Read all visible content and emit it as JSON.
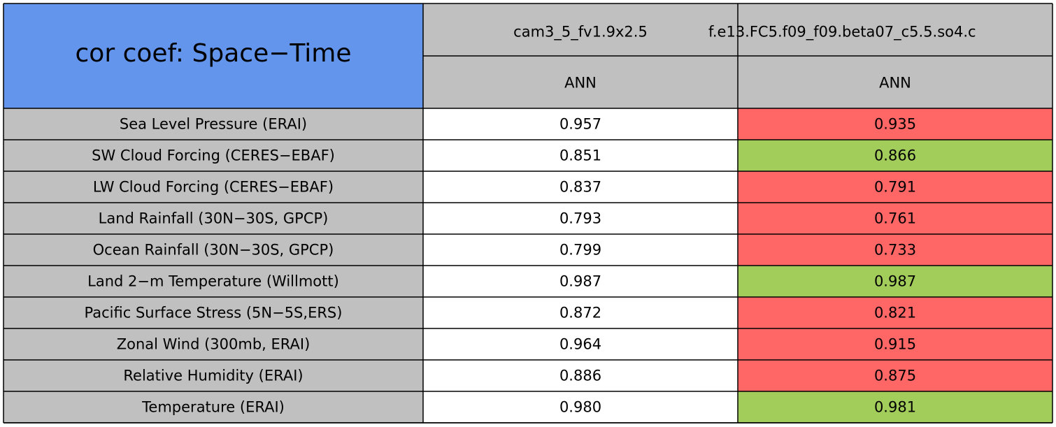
{
  "table": {
    "title": "cor coef: Space−Time",
    "columns": [
      {
        "case": "cam3_5_fv1.9x2.5",
        "season": "ANN"
      },
      {
        "case": "f.e13.FC5.f09_f09.beta07_c5.5.so4.c",
        "season": "ANN"
      }
    ],
    "rows": [
      {
        "label": "Sea Level Pressure (ERAI)",
        "cells": [
          {
            "value": "0.957"
          },
          {
            "value": "0.935",
            "color": "#ff6666"
          }
        ]
      },
      {
        "label": "SW Cloud Forcing (CERES−EBAF)",
        "cells": [
          {
            "value": "0.851"
          },
          {
            "value": "0.866",
            "color": "#a2cd5a"
          }
        ]
      },
      {
        "label": "LW Cloud Forcing (CERES−EBAF)",
        "cells": [
          {
            "value": "0.837"
          },
          {
            "value": "0.791",
            "color": "#ff6666"
          }
        ]
      },
      {
        "label": "Land Rainfall (30N−30S, GPCP)",
        "cells": [
          {
            "value": "0.793"
          },
          {
            "value": "0.761",
            "color": "#ff6666"
          }
        ]
      },
      {
        "label": "Ocean Rainfall (30N−30S, GPCP)",
        "cells": [
          {
            "value": "0.799"
          },
          {
            "value": "0.733",
            "color": "#ff6666"
          }
        ]
      },
      {
        "label": "Land 2−m Temperature (Willmott)",
        "cells": [
          {
            "value": "0.987"
          },
          {
            "value": "0.987",
            "color": "#a2cd5a"
          }
        ]
      },
      {
        "label": "Pacific Surface Stress (5N−5S,ERS)",
        "cells": [
          {
            "value": "0.872"
          },
          {
            "value": "0.821",
            "color": "#ff6666"
          }
        ]
      },
      {
        "label": "Zonal Wind (300mb, ERAI)",
        "cells": [
          {
            "value": "0.964"
          },
          {
            "value": "0.915",
            "color": "#ff6666"
          }
        ]
      },
      {
        "label": "Relative Humidity (ERAI)",
        "cells": [
          {
            "value": "0.886"
          },
          {
            "value": "0.875",
            "color": "#ff6666"
          }
        ]
      },
      {
        "label": "Temperature (ERAI)",
        "cells": [
          {
            "value": "0.980"
          },
          {
            "value": "0.981",
            "color": "#a2cd5a"
          }
        ]
      }
    ]
  }
}
